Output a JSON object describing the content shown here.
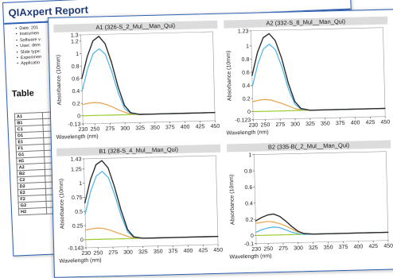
{
  "report": {
    "title": "QIAxpert Report",
    "meta": [
      "Date: 201",
      "Instrumen",
      "Software v",
      "User: dem",
      "Slide type:",
      "Experimen",
      "Applicatio"
    ],
    "table_heading": "Table",
    "table_col_header": "Sa",
    "table_rows": [
      "A1",
      "B1",
      "C1",
      "D1",
      "E1",
      "F1",
      "G1",
      "H1",
      "A2",
      "B2",
      "C2",
      "D2",
      "E2",
      "F2",
      "G2",
      "H2"
    ]
  },
  "colors": {
    "frame_blue": "#2f5fb3",
    "title_bar": "#dcdcdc",
    "series_measured": "#2b2b2b",
    "series_dna": "#4bb3e8",
    "series_impurity": "#e8a24a",
    "series_residual": "#9acd32"
  },
  "chart_data": [
    {
      "type": "line",
      "title": "A1 (326-S_2_Mul__Man_Qui)",
      "xlabel": "Wavelength (nm)",
      "ylabel": "Absorbance (10mm)",
      "xlim": [
        230,
        450
      ],
      "ylim": [
        -0.13,
        1.3
      ],
      "x_ticks": [
        230,
        250,
        275,
        300,
        325,
        350,
        375,
        400,
        425,
        450
      ],
      "y_ticks": [
        {
          "value": -0.13,
          "label": "-0.13"
        },
        {
          "value": 0,
          "label": "0"
        },
        {
          "value": 0.2,
          "label": "0.2"
        },
        {
          "value": 0.4,
          "label": "0.4"
        },
        {
          "value": 0.6,
          "label": "0.6"
        },
        {
          "value": 0.8,
          "label": "0.8"
        },
        {
          "value": 1.0,
          "label": "1"
        },
        {
          "value": 1.2,
          "label": "1.2"
        },
        {
          "value": 1.3,
          "label": "1.3"
        }
      ],
      "x": [
        230,
        240,
        250,
        260,
        270,
        280,
        290,
        300,
        310,
        325,
        350,
        375,
        400,
        425,
        450
      ],
      "series": [
        {
          "role": "measured",
          "values": [
            0.6,
            0.95,
            1.2,
            1.27,
            1.15,
            0.85,
            0.45,
            0.15,
            0.03,
            0.0,
            0.0,
            0.0,
            0.0,
            0.0,
            0.0
          ]
        },
        {
          "role": "dna",
          "values": [
            0.4,
            0.75,
            1.0,
            1.07,
            0.98,
            0.7,
            0.35,
            0.1,
            0.02,
            0.0,
            0.0,
            0.0,
            0.0,
            0.0,
            0.0
          ]
        },
        {
          "role": "impurity",
          "values": [
            0.18,
            0.2,
            0.21,
            0.2,
            0.17,
            0.13,
            0.08,
            0.04,
            0.01,
            0.0,
            0.0,
            0.0,
            0.0,
            0.0,
            0.0
          ]
        },
        {
          "role": "residual",
          "values": [
            0.0,
            0.0,
            0.0,
            0.0,
            0.0,
            0.0,
            0.0,
            0.0,
            0.0,
            0.0,
            0.0,
            0.0,
            0.0,
            0.0,
            0.0
          ]
        }
      ]
    },
    {
      "type": "line",
      "title": "A2 (332-S_8_Mul__Man_Qui)",
      "xlabel": "Wavelength (nm)",
      "ylabel": "Absorbance (10mm)",
      "xlim": [
        230,
        450
      ],
      "ylim": [
        -0.123,
        1.23
      ],
      "x_ticks": [
        230,
        250,
        275,
        300,
        325,
        350,
        375,
        400,
        425,
        450
      ],
      "y_ticks": [
        {
          "value": -0.123,
          "label": "-0.123"
        },
        {
          "value": 0,
          "label": "0"
        },
        {
          "value": 0.2,
          "label": "0.2"
        },
        {
          "value": 0.4,
          "label": "0.4"
        },
        {
          "value": 0.6,
          "label": "0.6"
        },
        {
          "value": 0.8,
          "label": "0.8"
        },
        {
          "value": 1.0,
          "label": "1"
        },
        {
          "value": 1.23,
          "label": "1.23"
        }
      ],
      "x": [
        230,
        240,
        250,
        260,
        270,
        280,
        290,
        300,
        310,
        325,
        350,
        375,
        400,
        425,
        450
      ],
      "series": [
        {
          "role": "measured",
          "values": [
            0.55,
            0.9,
            1.12,
            1.18,
            1.07,
            0.8,
            0.42,
            0.14,
            0.03,
            0.0,
            0.0,
            0.0,
            0.0,
            0.0,
            0.0
          ]
        },
        {
          "role": "dna",
          "values": [
            0.38,
            0.72,
            0.95,
            1.02,
            0.93,
            0.67,
            0.33,
            0.1,
            0.02,
            0.0,
            0.0,
            0.0,
            0.0,
            0.0,
            0.0
          ]
        },
        {
          "role": "impurity",
          "values": [
            0.15,
            0.17,
            0.18,
            0.17,
            0.14,
            0.11,
            0.07,
            0.03,
            0.01,
            0.0,
            0.0,
            0.0,
            0.0,
            0.0,
            0.0
          ]
        },
        {
          "role": "residual",
          "values": [
            0.0,
            0.0,
            0.0,
            0.0,
            0.0,
            0.0,
            0.0,
            0.0,
            0.0,
            0.0,
            0.0,
            0.0,
            0.0,
            0.0,
            0.0
          ]
        }
      ]
    },
    {
      "type": "line",
      "title": "B1 (328-S_4_Mul__Man_Qui)",
      "xlabel": "Wavelength (nm)",
      "ylabel": "Absorbance (10mm)",
      "xlim": [
        230,
        450
      ],
      "ylim": [
        -0.143,
        1.43
      ],
      "x_ticks": [
        230,
        250,
        275,
        300,
        325,
        350,
        375,
        400,
        425,
        450
      ],
      "y_ticks": [
        {
          "value": -0.143,
          "label": "-0.143"
        },
        {
          "value": 0,
          "label": "0"
        },
        {
          "value": 0.25,
          "label": "0.25"
        },
        {
          "value": 0.5,
          "label": "0.5"
        },
        {
          "value": 0.75,
          "label": "0.75"
        },
        {
          "value": 1.0,
          "label": "1"
        },
        {
          "value": 1.25,
          "label": "1.25"
        },
        {
          "value": 1.43,
          "label": "1.43"
        }
      ],
      "x": [
        230,
        240,
        250,
        260,
        270,
        280,
        290,
        300,
        310,
        325,
        350,
        375,
        400,
        425,
        450
      ],
      "series": [
        {
          "role": "measured",
          "values": [
            0.65,
            1.05,
            1.32,
            1.39,
            1.26,
            0.92,
            0.5,
            0.16,
            0.03,
            0.0,
            0.0,
            0.0,
            0.0,
            0.0,
            0.0
          ]
        },
        {
          "role": "dna",
          "values": [
            0.45,
            0.85,
            1.12,
            1.2,
            1.09,
            0.78,
            0.4,
            0.12,
            0.02,
            0.0,
            0.0,
            0.0,
            0.0,
            0.0,
            0.0
          ]
        },
        {
          "role": "impurity",
          "values": [
            0.17,
            0.19,
            0.2,
            0.19,
            0.16,
            0.12,
            0.08,
            0.04,
            0.01,
            0.0,
            0.0,
            0.0,
            0.0,
            0.0,
            0.0
          ]
        },
        {
          "role": "residual",
          "values": [
            0.0,
            0.0,
            0.0,
            0.0,
            0.0,
            0.0,
            0.0,
            0.0,
            0.0,
            0.0,
            0.0,
            0.0,
            0.0,
            0.0,
            0.0
          ]
        }
      ]
    },
    {
      "type": "line",
      "title": "B2 (335-B(_2_Mul__Man_Qui)",
      "xlabel": "Wavelength (nm)",
      "ylabel": "Absorbance (10mm)",
      "xlim": [
        230,
        450
      ],
      "ylim": [
        -0.1,
        1.0
      ],
      "x_ticks": [
        230,
        250,
        275,
        300,
        325,
        350,
        375,
        400,
        425,
        450
      ],
      "y_ticks": [
        {
          "value": -0.1,
          "label": "-0.1"
        },
        {
          "value": 0,
          "label": "0"
        },
        {
          "value": 0.2,
          "label": "0.2"
        },
        {
          "value": 0.4,
          "label": "0.4"
        },
        {
          "value": 0.6,
          "label": "0.6"
        },
        {
          "value": 0.8,
          "label": "0.8"
        },
        {
          "value": 1.0,
          "label": "1"
        }
      ],
      "x": [
        230,
        240,
        250,
        260,
        270,
        280,
        290,
        300,
        310,
        325,
        350,
        375,
        400,
        425,
        450
      ],
      "series": [
        {
          "role": "measured",
          "values": [
            0.18,
            0.22,
            0.25,
            0.26,
            0.23,
            0.17,
            0.1,
            0.04,
            0.01,
            0.0,
            0.0,
            0.0,
            0.0,
            0.0,
            0.0
          ]
        },
        {
          "role": "dna",
          "values": [
            0.04,
            0.07,
            0.09,
            0.1,
            0.09,
            0.06,
            0.03,
            0.01,
            0.0,
            0.0,
            0.0,
            0.0,
            0.0,
            0.0,
            0.0
          ]
        },
        {
          "role": "impurity",
          "values": [
            0.15,
            0.16,
            0.17,
            0.16,
            0.14,
            0.11,
            0.07,
            0.03,
            0.01,
            0.0,
            0.0,
            0.0,
            0.0,
            0.0,
            0.0
          ]
        },
        {
          "role": "residual",
          "values": [
            0.0,
            0.0,
            0.0,
            0.0,
            0.0,
            0.0,
            0.0,
            0.0,
            0.0,
            0.0,
            0.0,
            0.0,
            0.0,
            0.0,
            0.0
          ]
        }
      ]
    }
  ]
}
